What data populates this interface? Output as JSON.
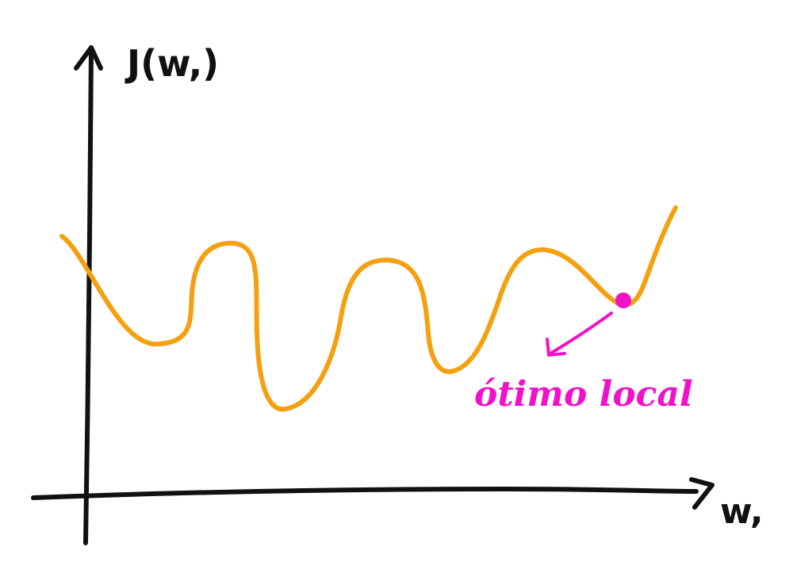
{
  "diagram": {
    "y_axis_label": "J(w,)",
    "x_axis_label": "w,",
    "annotation": "ótimo local",
    "colors": {
      "axes": "#111111",
      "curve": "#f5a00f",
      "highlight": "#f012c9"
    }
  }
}
